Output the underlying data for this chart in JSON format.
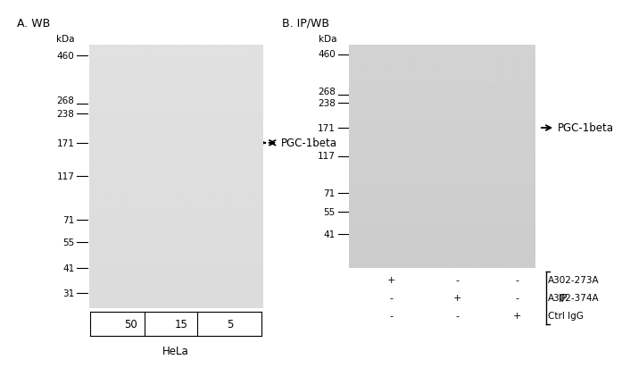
{
  "panel_a_title": "A. WB",
  "panel_b_title": "B. IP/WB",
  "kda_label": "kDa",
  "mw_markers_a": [
    460,
    268,
    238,
    171,
    117,
    71,
    55,
    41,
    31
  ],
  "mw_markers_b": [
    460,
    268,
    238,
    171,
    117,
    71,
    55,
    41
  ],
  "band_label": "PGC-1beta",
  "panel_a_lanes": [
    "50",
    "15",
    "5"
  ],
  "panel_a_cell_line": "HeLa",
  "panel_b_row1": [
    "+",
    "-",
    "-",
    "A302-273A"
  ],
  "panel_b_row2": [
    "-",
    "+",
    "-",
    "A302-374A"
  ],
  "panel_b_row3": [
    "-",
    "-",
    "+",
    "Ctrl IgG"
  ],
  "panel_b_ip_label": "IP",
  "gel_bg_a": "#e0e0e0",
  "gel_bg_b": "#d0d0d0",
  "figure_bg": "#ffffff",
  "font_size_title": 9,
  "font_size_marker": 7.5,
  "font_size_label": 8.5,
  "log_min": 1.415,
  "log_max": 2.716
}
